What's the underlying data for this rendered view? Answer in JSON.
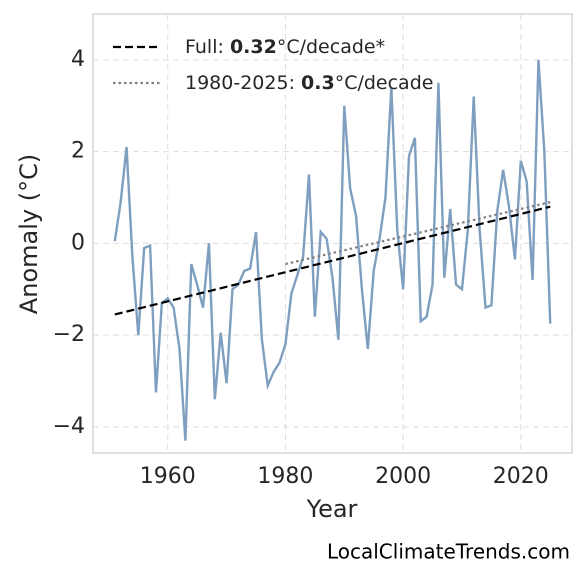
{
  "chart_data": {
    "type": "line",
    "xlabel": "Year",
    "ylabel": "Anomaly (°C)",
    "x": [
      1951,
      1952,
      1953,
      1954,
      1955,
      1956,
      1957,
      1958,
      1959,
      1960,
      1961,
      1962,
      1963,
      1964,
      1965,
      1966,
      1967,
      1968,
      1969,
      1970,
      1971,
      1972,
      1973,
      1974,
      1975,
      1976,
      1977,
      1978,
      1979,
      1980,
      1981,
      1982,
      1983,
      1984,
      1985,
      1986,
      1987,
      1988,
      1989,
      1990,
      1991,
      1992,
      1993,
      1994,
      1995,
      1996,
      1997,
      1998,
      1999,
      2000,
      2001,
      2002,
      2003,
      2004,
      2005,
      2006,
      2007,
      2008,
      2009,
      2010,
      2011,
      2012,
      2013,
      2014,
      2015,
      2016,
      2017,
      2018,
      2019,
      2020,
      2021,
      2022,
      2023,
      2024,
      2025
    ],
    "series": [
      {
        "color": "#7f9fc0",
        "values": [
          0.05,
          0.9,
          2.1,
          -0.3,
          -2.0,
          -0.1,
          -0.05,
          -3.25,
          -1.3,
          -1.2,
          -1.4,
          -2.3,
          -4.3,
          -0.45,
          -0.9,
          -1.4,
          0.0,
          -3.4,
          -1.95,
          -3.05,
          -1.0,
          -0.9,
          -0.6,
          -0.55,
          0.25,
          -2.1,
          -3.1,
          -2.8,
          -2.6,
          -2.2,
          -1.1,
          -0.7,
          -0.3,
          1.5,
          -1.6,
          0.25,
          0.1,
          -0.75,
          -2.1,
          3.0,
          1.2,
          0.6,
          -1.0,
          -2.3,
          -0.6,
          0.1,
          1.0,
          3.4,
          0.3,
          -1.0,
          1.9,
          2.3,
          -1.7,
          -1.6,
          -0.9,
          3.5,
          -0.75,
          0.75,
          -0.9,
          -1.0,
          0.3,
          3.2,
          0.3,
          -1.4,
          -1.35,
          0.7,
          1.6,
          0.8,
          -0.35,
          1.8,
          1.35,
          -0.8,
          4.0,
          2.0,
          -1.75
        ]
      }
    ],
    "trends": [
      {
        "prefix": "Full: ",
        "slope": 0.32,
        "suffix": "°C/decade*",
        "x": [
          1951,
          2025
        ],
        "y": [
          -1.55,
          0.8
        ],
        "color": "#000000",
        "dash": "dashed"
      },
      {
        "prefix": "1980-2025: ",
        "slope": 0.3,
        "suffix": "°C/decade",
        "x": [
          1980,
          2025
        ],
        "y": [
          -0.45,
          0.9
        ],
        "color": "#808080",
        "dash": "dotted"
      }
    ],
    "xlim": [
      1947.3,
      2028.7
    ],
    "ylim": [
      -4.57,
      5.0
    ],
    "xticks": [
      1960,
      1980,
      2000,
      2020
    ],
    "yticks": [
      {
        "value": -4,
        "label": "−4"
      },
      {
        "value": -2,
        "label": "−2"
      },
      0,
      2,
      4
    ],
    "grid": true
  },
  "source": "LocalClimateTrends.com"
}
